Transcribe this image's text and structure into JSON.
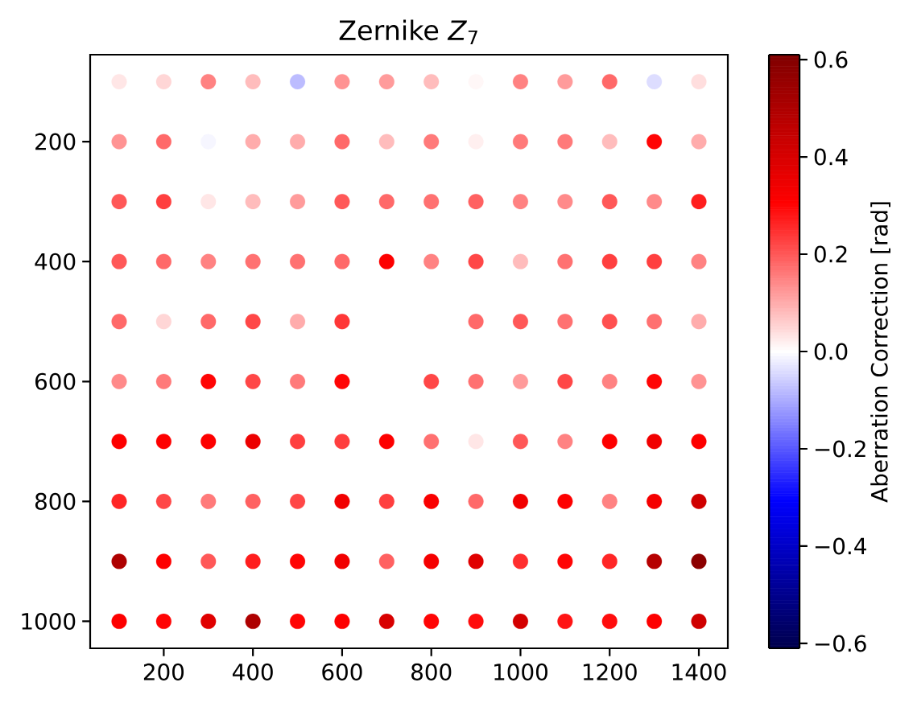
{
  "chart_data": {
    "type": "scatter",
    "title": "Zernike *Z*$_{7}$",
    "clabel": "Aberration Correction [rad]",
    "x": [
      100,
      200,
      300,
      400,
      500,
      600,
      700,
      800,
      900,
      1000,
      1100,
      1200,
      1300,
      1400,
      100,
      200,
      300,
      400,
      500,
      600,
      700,
      800,
      900,
      1000,
      1100,
      1200,
      1300,
      1400,
      100,
      200,
      300,
      400,
      500,
      600,
      700,
      800,
      900,
      1000,
      1100,
      1200,
      1300,
      1400,
      100,
      200,
      300,
      400,
      500,
      600,
      700,
      800,
      900,
      1000,
      1100,
      1200,
      1300,
      1400,
      100,
      200,
      300,
      400,
      500,
      600,
      900,
      1000,
      1100,
      1200,
      1300,
      1400,
      100,
      200,
      300,
      400,
      500,
      600,
      800,
      900,
      1000,
      1100,
      1200,
      1300,
      1400,
      100,
      200,
      300,
      400,
      500,
      600,
      700,
      800,
      900,
      1000,
      1100,
      1200,
      1300,
      1400,
      100,
      200,
      300,
      400,
      500,
      600,
      700,
      800,
      900,
      1000,
      1100,
      1200,
      1300,
      1400,
      100,
      200,
      300,
      400,
      500,
      600,
      700,
      800,
      900,
      1000,
      1100,
      1200,
      1300,
      1400,
      100,
      200,
      300,
      400,
      500,
      600,
      700,
      800,
      900,
      1000,
      1100,
      1200,
      1300,
      1400
    ],
    "values": [
      100,
      100,
      100,
      100,
      100,
      100,
      100,
      100,
      100,
      100,
      100,
      100,
      100,
      100,
      200,
      200,
      200,
      200,
      200,
      200,
      200,
      200,
      200,
      200,
      200,
      200,
      200,
      200,
      300,
      300,
      300,
      300,
      300,
      300,
      300,
      300,
      300,
      300,
      300,
      300,
      300,
      300,
      400,
      400,
      400,
      400,
      400,
      400,
      400,
      400,
      400,
      400,
      400,
      400,
      400,
      400,
      500,
      500,
      500,
      500,
      500,
      500,
      500,
      500,
      500,
      500,
      500,
      500,
      600,
      600,
      600,
      600,
      600,
      600,
      600,
      600,
      600,
      600,
      600,
      600,
      600,
      700,
      700,
      700,
      700,
      700,
      700,
      700,
      700,
      700,
      700,
      700,
      700,
      700,
      700,
      800,
      800,
      800,
      800,
      800,
      800,
      800,
      800,
      800,
      800,
      800,
      800,
      800,
      800,
      900,
      900,
      900,
      900,
      900,
      900,
      900,
      900,
      900,
      900,
      900,
      900,
      900,
      900,
      1000,
      1000,
      1000,
      1000,
      1000,
      1000,
      1000,
      1000,
      1000,
      1000,
      1000,
      1000,
      1000,
      1000
    ],
    "cvalues": [
      0.03,
      0.05,
      0.15,
      0.08,
      -0.08,
      0.13,
      0.12,
      0.08,
      0.01,
      0.15,
      0.12,
      0.18,
      -0.04,
      0.04,
      0.13,
      0.18,
      -0.01,
      0.1,
      0.1,
      0.18,
      0.08,
      0.16,
      0.02,
      0.16,
      0.16,
      0.08,
      0.3,
      0.1,
      0.2,
      0.23,
      0.03,
      0.08,
      0.12,
      0.2,
      0.18,
      0.17,
      0.19,
      0.15,
      0.14,
      0.2,
      0.14,
      0.27,
      0.2,
      0.18,
      0.15,
      0.17,
      0.17,
      0.18,
      0.31,
      0.15,
      0.22,
      0.08,
      0.17,
      0.23,
      0.23,
      0.15,
      0.18,
      0.05,
      0.18,
      0.22,
      0.1,
      0.24,
      0.18,
      0.2,
      0.17,
      0.21,
      0.17,
      0.1,
      0.14,
      0.16,
      0.3,
      0.22,
      0.16,
      0.3,
      0.22,
      0.17,
      0.12,
      0.22,
      0.15,
      0.3,
      0.13,
      0.31,
      0.31,
      0.31,
      0.35,
      0.23,
      0.23,
      0.31,
      0.17,
      0.03,
      0.2,
      0.15,
      0.31,
      0.34,
      0.31,
      0.26,
      0.22,
      0.16,
      0.19,
      0.22,
      0.34,
      0.23,
      0.32,
      0.18,
      0.34,
      0.31,
      0.15,
      0.33,
      0.42,
      0.5,
      0.31,
      0.2,
      0.27,
      0.3,
      0.34,
      0.19,
      0.33,
      0.38,
      0.25,
      0.3,
      0.26,
      0.48,
      0.58,
      0.31,
      0.3,
      0.38,
      0.5,
      0.3,
      0.31,
      0.4,
      0.3,
      0.29,
      0.41,
      0.28,
      0.29,
      0.31,
      0.42
    ],
    "xlim": [
      35,
      1465
    ],
    "ylim": [
      1045,
      55
    ],
    "xticks": [
      200,
      400,
      600,
      800,
      1000,
      1200,
      1400
    ],
    "yticks": [
      200,
      400,
      600,
      800,
      1000
    ],
    "clim": [
      -0.61,
      0.61
    ],
    "cticks": [
      {
        "value": -0.6,
        "label": "−0.6"
      },
      {
        "value": -0.4,
        "label": "−0.4"
      },
      {
        "value": -0.2,
        "label": "−0.2"
      },
      {
        "value": 0,
        "label": "0.0"
      },
      {
        "value": 0.2,
        "label": "0.2"
      },
      {
        "value": 0.4,
        "label": "0.4"
      },
      {
        "value": 0.6,
        "label": "0.6"
      }
    ],
    "marker": "circle"
  }
}
